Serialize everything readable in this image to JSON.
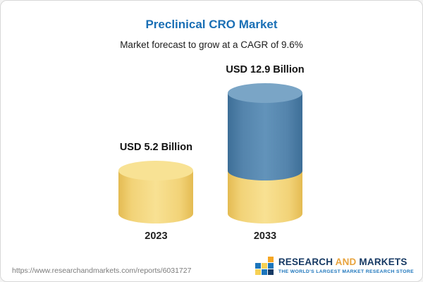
{
  "chart": {
    "title": "Preclinical CRO Market",
    "subtitle": "Market forecast to grow at a CAGR of 9.6%"
  },
  "chart_data": {
    "type": "bar",
    "title": "Preclinical CRO Market",
    "subtitle": "Market forecast to grow at a CAGR of 9.6%",
    "categories": [
      "2023",
      "2033"
    ],
    "values": [
      5.2,
      12.9
    ],
    "value_labels": [
      "USD 5.2 Billion",
      "USD 12.9 Billion"
    ],
    "unit": "USD Billion",
    "cagr_percent": 9.6,
    "legend_position": "none",
    "grid": false,
    "colors": {
      "bar_2023": "#F2D178",
      "bar_2033_bottom_segment": "#F2D178",
      "bar_2033_top_segment": "#54809F",
      "title": "#1A6FB5"
    }
  },
  "footer": {
    "url": "https://www.researchandmarkets.com/reports/6031727",
    "logo": {
      "word_research": "RESEARCH ",
      "word_and": "AND",
      "word_markets": " MARKETS",
      "tagline": "THE WORLD'S LARGEST MARKET RESEARCH STORE",
      "brand_navy": "#173A64",
      "brand_orange": "#E8A33D",
      "brand_blue": "#1C75BC"
    }
  }
}
